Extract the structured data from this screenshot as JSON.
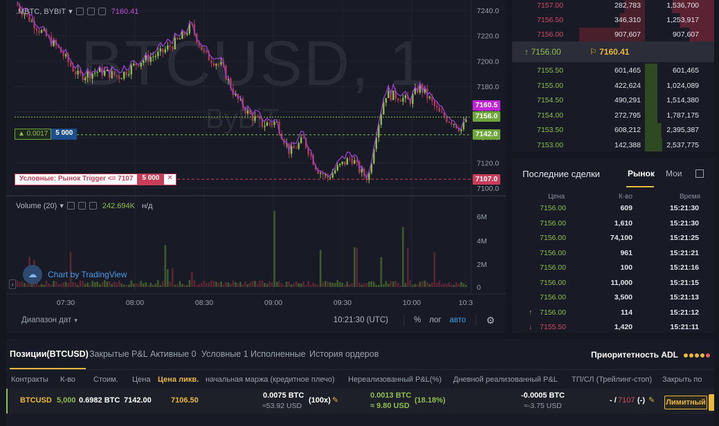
{
  "chart": {
    "symbol": ".MBTC, BYBIT",
    "legend_value": "7160.41",
    "watermark": "BTCUSD, 1",
    "watermark_sub": "ByBiT",
    "position_tag": {
      "pnl": "▲ 0.0017",
      "qty": "5 000"
    },
    "conditional_tag": {
      "label": "Условные: Рынок Trigger <= 7107",
      "qty": "5 000",
      "close": "✕"
    },
    "price_axis": [
      "7240.0",
      "7220.0",
      "7200.0",
      "7180.0",
      "7160.0",
      "7140.0",
      "7120.0",
      "7100.0"
    ],
    "price_labels": [
      {
        "text": "7160.5",
        "bg": "#c024d6",
        "fg": "#ffffff"
      },
      {
        "text": "7156.0",
        "bg": "#6ea63a",
        "fg": "#ffffff"
      },
      {
        "text": "7142.0",
        "bg": "#6ea63a",
        "fg": "#ffffff"
      },
      {
        "text": "7107.0",
        "bg": "#c83d5a",
        "fg": "#ffffff"
      }
    ],
    "volume_legend": {
      "name": "Volume (20)",
      "value": "242.694K",
      "na": "н/д"
    },
    "volume_axis": [
      "6M",
      "4M",
      "2M",
      "0"
    ],
    "time_axis": [
      "07:30",
      "08:00",
      "08:30",
      "09:00",
      "09:30",
      "10:00",
      "10:3"
    ],
    "tradingview": "Chart by TradingView",
    "bottom": {
      "range": "Диапазон дат",
      "time": "10:21:30 (UTC)",
      "percent": "%",
      "log": "лог",
      "auto": "авто"
    }
  },
  "orderbook": {
    "asks": [
      {
        "price": "7157.00",
        "size": "282,783",
        "total": "1,536,700"
      },
      {
        "price": "7156.50",
        "size": "346,310",
        "total": "1,253,917"
      },
      {
        "price": "7156.00",
        "size": "907,607",
        "total": "907,607"
      }
    ],
    "last_price": "7156.00",
    "mark_price": "7160.41",
    "bids": [
      {
        "price": "7155.50",
        "size": "601,465",
        "total": "601,465"
      },
      {
        "price": "7155.00",
        "size": "422,624",
        "total": "1,024,089"
      },
      {
        "price": "7154.50",
        "size": "490,291",
        "total": "1,514,380"
      },
      {
        "price": "7154.00",
        "size": "272,795",
        "total": "1,787,175"
      },
      {
        "price": "7153.50",
        "size": "608,212",
        "total": "2,395,387"
      },
      {
        "price": "7153.00",
        "size": "142,388",
        "total": "2,537,775"
      }
    ],
    "colors": {
      "ask": "#d24a66",
      "bid": "#8fbf4f"
    }
  },
  "trades": {
    "title": "Последние сделки",
    "tabs": [
      "Рынок",
      "Мои"
    ],
    "headers": [
      "Цена",
      "К-во",
      "Время"
    ],
    "rows": [
      {
        "price": "7156.00",
        "qty": "609",
        "time": "15:21:30",
        "dir": ""
      },
      {
        "price": "7156.00",
        "qty": "1,610",
        "time": "15:21:30",
        "dir": ""
      },
      {
        "price": "7156.00",
        "qty": "74,100",
        "time": "15:21:25",
        "dir": ""
      },
      {
        "price": "7156.00",
        "qty": "961",
        "time": "15:21:21",
        "dir": ""
      },
      {
        "price": "7156.00",
        "qty": "100",
        "time": "15:21:16",
        "dir": ""
      },
      {
        "price": "7156.00",
        "qty": "11,000",
        "time": "15:21:15",
        "dir": ""
      },
      {
        "price": "7156.00",
        "qty": "3,500",
        "time": "15:21:13",
        "dir": ""
      },
      {
        "price": "7156.00",
        "qty": "114",
        "time": "15:21:12",
        "dir": "up"
      },
      {
        "price": "7155.50",
        "qty": "1,420",
        "time": "15:21:11",
        "dir": "down"
      }
    ]
  },
  "positions": {
    "tabs": [
      "Позиции(BTCUSD)",
      "Закрытые P&L",
      "Активные 0",
      "Условные 1",
      "Исполненные",
      "История ордеров"
    ],
    "adl_label": "Приоритетность ADL",
    "adl_colors": [
      "#e9b83c",
      "#e9b83c",
      "#e9b83c",
      "#e9b83c",
      "#e06060"
    ],
    "headers": [
      "Контракты",
      "К-во",
      "Стоим.",
      "Цена",
      "Цена ликв.",
      "начальная маржа (кредитное плечо)",
      "Нереализованный P&L(%)",
      "Дневной реализованный P&L",
      "ТП/СЛ (Трейлинг-стоп)",
      "Закрыть по"
    ],
    "row": {
      "contract": "BTCUSD",
      "qty": "5,000",
      "value": "0.6982 BTC",
      "price": "7142.00",
      "liq": "7106.50",
      "margin": "0.0075 BTC",
      "margin_usd": "≈53.92 USD",
      "leverage": "(100x)",
      "upnl": "0.0013 BTC",
      "upnl_usd": "≈ 9.80 USD",
      "upnl_pct": "(18.18%)",
      "rpnl": "-0.0005 BTC",
      "rpnl_usd": "≈-3.75 USD",
      "tpsl_a": "- /",
      "tpsl_b": "7107",
      "tpsl_c": "(-)",
      "close": "Лимитный"
    }
  }
}
